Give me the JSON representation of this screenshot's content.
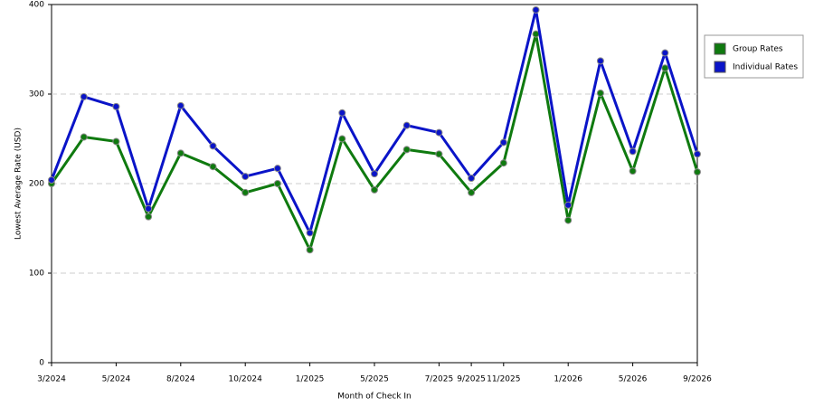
{
  "chart_data": {
    "type": "line",
    "x_label": "Month of Check In",
    "y_label": "Lowest Average Rate (USD)",
    "categories": [
      "3/2024",
      null,
      "5/2024",
      null,
      "8/2024",
      null,
      "10/2024",
      null,
      "1/2025",
      null,
      "5/2025",
      null,
      "7/2025",
      "9/2025",
      "11/2025",
      null,
      "1/2026",
      null,
      "5/2026",
      null,
      "9/2026"
    ],
    "series": [
      {
        "name": "Group Rates",
        "color": "#0f7a0f",
        "values": [
          200,
          252,
          247,
          163,
          234,
          219,
          190,
          200,
          126,
          250,
          193,
          238,
          233,
          190,
          223,
          367,
          159,
          301,
          214,
          329,
          213
        ]
      },
      {
        "name": "Individual Rates",
        "color": "#0a14c8",
        "values": [
          204,
          297,
          286,
          172,
          287,
          242,
          208,
          217,
          145,
          279,
          211,
          265,
          257,
          206,
          246,
          394,
          176,
          337,
          236,
          346,
          233
        ]
      }
    ],
    "ylim": [
      0,
      400
    ],
    "yticks": [
      0,
      100,
      200,
      300,
      400
    ],
    "grid": true,
    "legend": "right"
  }
}
